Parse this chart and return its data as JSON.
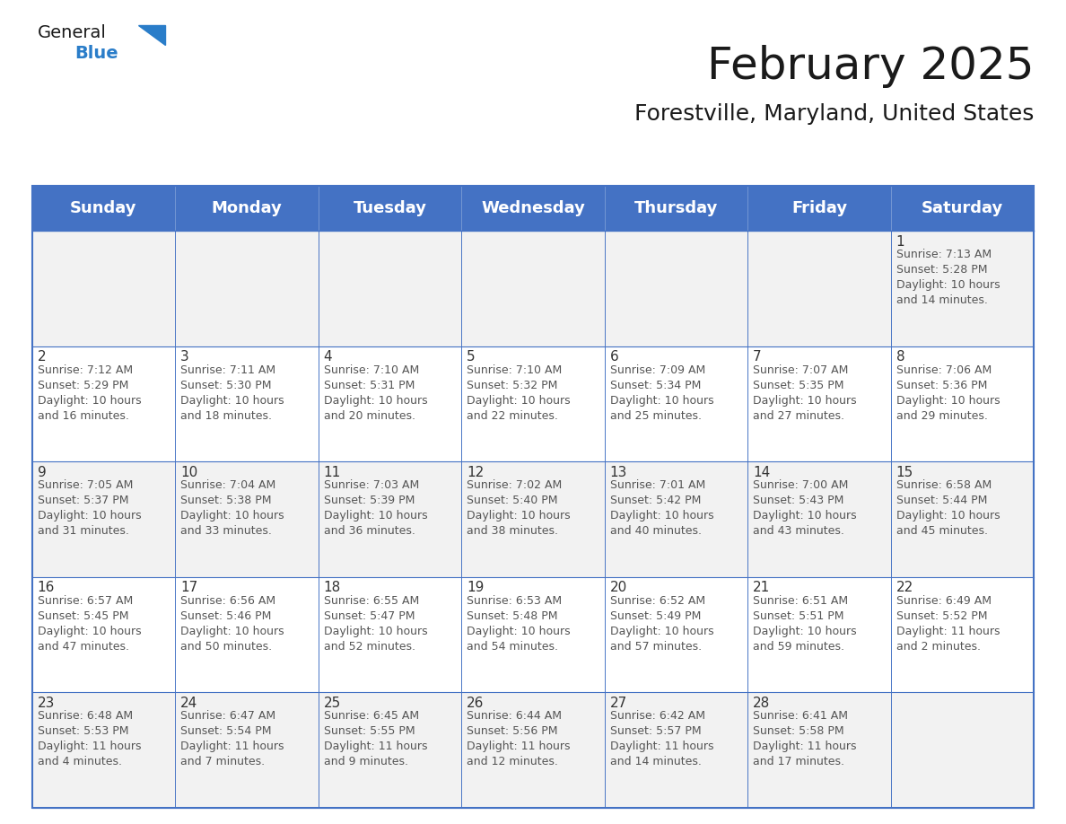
{
  "title": "February 2025",
  "subtitle": "Forestville, Maryland, United States",
  "days_of_week": [
    "Sunday",
    "Monday",
    "Tuesday",
    "Wednesday",
    "Thursday",
    "Friday",
    "Saturday"
  ],
  "header_bg": "#4472C4",
  "header_text": "#FFFFFF",
  "row_bg_odd": "#F2F2F2",
  "row_bg_even": "#FFFFFF",
  "border_color": "#4472C4",
  "cell_data": [
    [
      "",
      "",
      "",
      "",
      "",
      "",
      "1\nSunrise: 7:13 AM\nSunset: 5:28 PM\nDaylight: 10 hours\nand 14 minutes."
    ],
    [
      "2\nSunrise: 7:12 AM\nSunset: 5:29 PM\nDaylight: 10 hours\nand 16 minutes.",
      "3\nSunrise: 7:11 AM\nSunset: 5:30 PM\nDaylight: 10 hours\nand 18 minutes.",
      "4\nSunrise: 7:10 AM\nSunset: 5:31 PM\nDaylight: 10 hours\nand 20 minutes.",
      "5\nSunrise: 7:10 AM\nSunset: 5:32 PM\nDaylight: 10 hours\nand 22 minutes.",
      "6\nSunrise: 7:09 AM\nSunset: 5:34 PM\nDaylight: 10 hours\nand 25 minutes.",
      "7\nSunrise: 7:07 AM\nSunset: 5:35 PM\nDaylight: 10 hours\nand 27 minutes.",
      "8\nSunrise: 7:06 AM\nSunset: 5:36 PM\nDaylight: 10 hours\nand 29 minutes."
    ],
    [
      "9\nSunrise: 7:05 AM\nSunset: 5:37 PM\nDaylight: 10 hours\nand 31 minutes.",
      "10\nSunrise: 7:04 AM\nSunset: 5:38 PM\nDaylight: 10 hours\nand 33 minutes.",
      "11\nSunrise: 7:03 AM\nSunset: 5:39 PM\nDaylight: 10 hours\nand 36 minutes.",
      "12\nSunrise: 7:02 AM\nSunset: 5:40 PM\nDaylight: 10 hours\nand 38 minutes.",
      "13\nSunrise: 7:01 AM\nSunset: 5:42 PM\nDaylight: 10 hours\nand 40 minutes.",
      "14\nSunrise: 7:00 AM\nSunset: 5:43 PM\nDaylight: 10 hours\nand 43 minutes.",
      "15\nSunrise: 6:58 AM\nSunset: 5:44 PM\nDaylight: 10 hours\nand 45 minutes."
    ],
    [
      "16\nSunrise: 6:57 AM\nSunset: 5:45 PM\nDaylight: 10 hours\nand 47 minutes.",
      "17\nSunrise: 6:56 AM\nSunset: 5:46 PM\nDaylight: 10 hours\nand 50 minutes.",
      "18\nSunrise: 6:55 AM\nSunset: 5:47 PM\nDaylight: 10 hours\nand 52 minutes.",
      "19\nSunrise: 6:53 AM\nSunset: 5:48 PM\nDaylight: 10 hours\nand 54 minutes.",
      "20\nSunrise: 6:52 AM\nSunset: 5:49 PM\nDaylight: 10 hours\nand 57 minutes.",
      "21\nSunrise: 6:51 AM\nSunset: 5:51 PM\nDaylight: 10 hours\nand 59 minutes.",
      "22\nSunrise: 6:49 AM\nSunset: 5:52 PM\nDaylight: 11 hours\nand 2 minutes."
    ],
    [
      "23\nSunrise: 6:48 AM\nSunset: 5:53 PM\nDaylight: 11 hours\nand 4 minutes.",
      "24\nSunrise: 6:47 AM\nSunset: 5:54 PM\nDaylight: 11 hours\nand 7 minutes.",
      "25\nSunrise: 6:45 AM\nSunset: 5:55 PM\nDaylight: 11 hours\nand 9 minutes.",
      "26\nSunrise: 6:44 AM\nSunset: 5:56 PM\nDaylight: 11 hours\nand 12 minutes.",
      "27\nSunrise: 6:42 AM\nSunset: 5:57 PM\nDaylight: 11 hours\nand 14 minutes.",
      "28\nSunrise: 6:41 AM\nSunset: 5:58 PM\nDaylight: 11 hours\nand 17 minutes.",
      ""
    ]
  ],
  "title_fontsize": 36,
  "subtitle_fontsize": 18,
  "header_fontsize": 13,
  "cell_day_fontsize": 11,
  "cell_text_fontsize": 9,
  "logo_text_general": "General",
  "logo_text_blue": "Blue",
  "logo_color_general": "#1a1a1a",
  "logo_color_blue": "#2a7dc9",
  "logo_triangle_color": "#2a7dc9"
}
